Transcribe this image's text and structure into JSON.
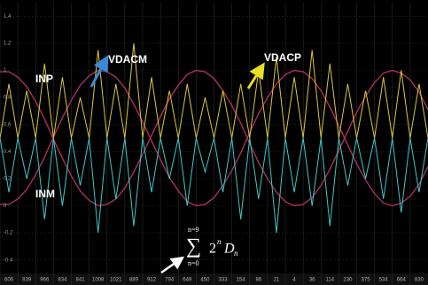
{
  "chart_data": {
    "type": "line",
    "x": [
      0,
      0.5,
      1,
      1.5,
      2,
      2.5,
      3,
      3.5,
      4,
      4.5,
      5,
      5.5,
      6,
      6.5,
      7,
      7.5,
      8,
      8.5,
      9,
      9.5,
      10,
      10.5,
      11,
      11.5,
      12,
      12.5,
      13,
      13.5,
      14,
      14.5,
      15,
      15.5,
      16,
      16.5,
      17,
      17.5,
      18,
      18.5,
      19,
      19.5,
      20,
      20.5,
      21,
      21.5,
      22,
      22.5,
      23,
      23.5,
      24
    ],
    "xlim": [
      0,
      24
    ],
    "ylim": [
      -0.5,
      1.5
    ],
    "yticks": [
      -0.4,
      -0.2,
      0,
      0.2,
      0.4,
      0.6,
      0.8,
      1,
      1.2,
      1.4
    ],
    "grid": true,
    "code_labels": [
      "606",
      "839",
      "966",
      "834",
      "841",
      "1008",
      "1021",
      "889",
      "912",
      "794",
      "649",
      "450",
      "333",
      "154",
      "86",
      "21",
      "4",
      "36",
      "114",
      "230",
      "375",
      "534",
      "664",
      "830"
    ],
    "series": [
      {
        "name": "INP",
        "color": "#a8305e",
        "values": [
          0.01,
          0.01,
          0.05,
          0.12,
          0.23,
          0.36,
          0.51,
          0.65,
          0.78,
          0.89,
          0.96,
          1.0,
          0.99,
          0.95,
          0.87,
          0.75,
          0.62,
          0.48,
          0.34,
          0.21,
          0.11,
          0.03,
          0.0,
          0.01,
          0.06,
          0.15,
          0.26,
          0.39,
          0.54,
          0.68,
          0.8,
          0.9,
          0.97,
          1.0,
          0.99,
          0.94,
          0.85,
          0.73,
          0.59,
          0.45,
          0.31,
          0.19,
          0.09,
          0.02,
          0.0,
          0.02,
          0.07,
          0.16,
          0.29
        ]
      },
      {
        "name": "INM",
        "color": "#a8305e",
        "values": [
          0.99,
          0.99,
          0.95,
          0.88,
          0.77,
          0.64,
          0.49,
          0.35,
          0.22,
          0.11,
          0.04,
          0.0,
          0.01,
          0.05,
          0.13,
          0.25,
          0.38,
          0.52,
          0.66,
          0.79,
          0.89,
          0.97,
          1.0,
          0.99,
          0.94,
          0.85,
          0.74,
          0.61,
          0.46,
          0.32,
          0.2,
          0.1,
          0.03,
          0.0,
          0.01,
          0.06,
          0.15,
          0.27,
          0.41,
          0.55,
          0.69,
          0.81,
          0.91,
          0.98,
          1.0,
          0.98,
          0.93,
          0.84,
          0.71
        ]
      },
      {
        "name": "VDACP",
        "color": "#d8c840",
        "values": [
          0.5,
          0.9,
          0.5,
          0.85,
          0.5,
          1.05,
          0.5,
          0.95,
          0.5,
          0.8,
          0.5,
          1.15,
          0.5,
          0.9,
          0.5,
          1.2,
          0.5,
          0.95,
          0.5,
          0.85,
          0.5,
          0.9,
          0.5,
          0.8,
          0.5,
          0.85,
          0.5,
          0.9,
          0.5,
          1.0,
          0.5,
          1.1,
          0.5,
          0.95,
          0.5,
          1.15,
          0.5,
          1.05,
          0.5,
          0.9,
          0.5,
          0.85,
          0.5,
          0.95,
          0.5,
          1.0,
          0.5,
          0.9,
          0.5
        ]
      },
      {
        "name": "VDACM",
        "color": "#40c8c8",
        "values": [
          0.5,
          0.1,
          0.5,
          0.2,
          0.5,
          -0.1,
          0.5,
          0.0,
          0.5,
          0.15,
          0.5,
          -0.2,
          0.5,
          0.05,
          0.5,
          -0.15,
          0.5,
          0.1,
          0.5,
          0.2,
          0.5,
          0.0,
          0.5,
          0.25,
          0.5,
          0.1,
          0.5,
          -0.1,
          0.5,
          0.05,
          0.5,
          -0.2,
          0.5,
          0.1,
          0.5,
          0.0,
          0.5,
          -0.15,
          0.5,
          0.15,
          0.5,
          0.2,
          0.5,
          0.05,
          0.5,
          -0.05,
          0.5,
          0.1,
          0.5
        ]
      }
    ],
    "annotation": {
      "symbol": "∑",
      "upper": "n=9",
      "lower": "n=0",
      "base": "2",
      "exponent": "n",
      "variable": "D",
      "subscript": "n"
    }
  }
}
